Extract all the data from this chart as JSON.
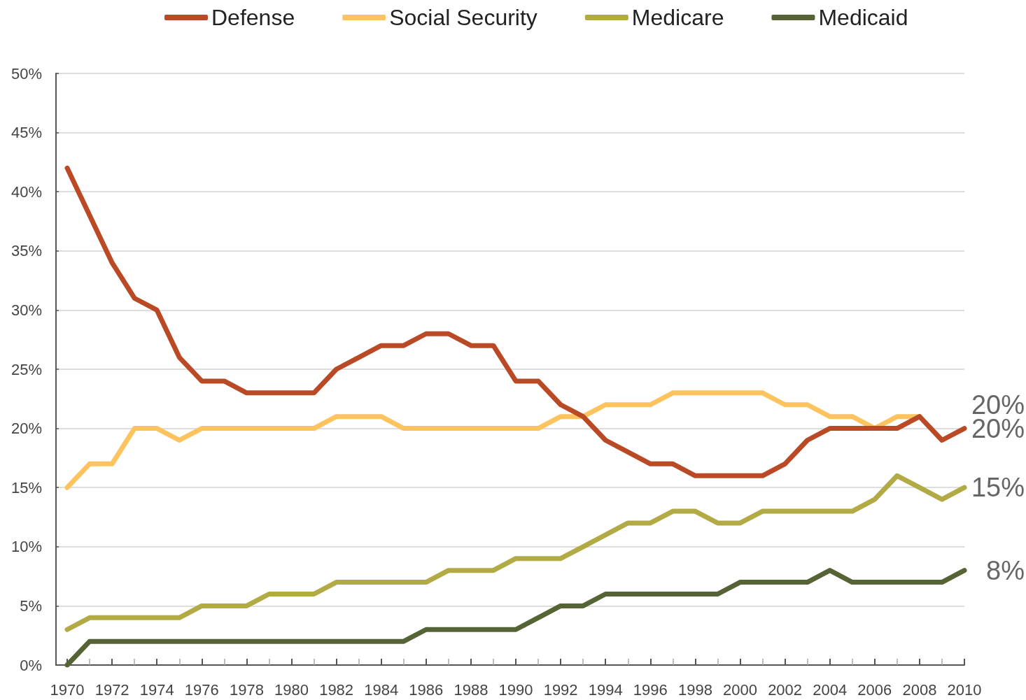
{
  "chart_data": {
    "type": "line",
    "x": [
      1970,
      1971,
      1972,
      1973,
      1974,
      1975,
      1976,
      1977,
      1978,
      1979,
      1980,
      1981,
      1982,
      1983,
      1984,
      1985,
      1986,
      1987,
      1988,
      1989,
      1990,
      1991,
      1992,
      1993,
      1994,
      1995,
      1996,
      1997,
      1998,
      1999,
      2000,
      2001,
      2002,
      2003,
      2004,
      2005,
      2006,
      2007,
      2008,
      2009,
      2010
    ],
    "series": [
      {
        "name": "Defense",
        "color": "#b94a25",
        "values": [
          42,
          38,
          34,
          31,
          30,
          26,
          24,
          24,
          23,
          23,
          23,
          23,
          25,
          26,
          27,
          27,
          28,
          28,
          27,
          27,
          24,
          24,
          22,
          21,
          19,
          18,
          17,
          17,
          16,
          16,
          16,
          16,
          17,
          19,
          20,
          20,
          20,
          20,
          21,
          19,
          20
        ],
        "value_labels": [
          null,
          null,
          null,
          null,
          null,
          null,
          null,
          null,
          null,
          null,
          null,
          null,
          null,
          null,
          null,
          null,
          null,
          null,
          null,
          null,
          null,
          null,
          null,
          null,
          null,
          null,
          null,
          null,
          null,
          null,
          null,
          null,
          null,
          null,
          null,
          null,
          null,
          null,
          null,
          null,
          "20%"
        ]
      },
      {
        "name": "Social Security",
        "color": "#fdc35f",
        "values": [
          15,
          17,
          17,
          20,
          20,
          19,
          20,
          20,
          20,
          20,
          20,
          20,
          21,
          21,
          21,
          20,
          20,
          20,
          20,
          20,
          20,
          20,
          21,
          21,
          22,
          22,
          22,
          23,
          23,
          23,
          23,
          23,
          22,
          22,
          21,
          21,
          20,
          21,
          21,
          null,
          null
        ]
      },
      {
        "name": "Medicare",
        "color": "#b2aa44",
        "values": [
          3,
          4,
          4,
          4,
          4,
          4,
          5,
          5,
          5,
          6,
          6,
          6,
          7,
          7,
          7,
          7,
          7,
          8,
          8,
          8,
          9,
          9,
          9,
          10,
          11,
          12,
          12,
          13,
          13,
          12,
          12,
          13,
          13,
          13,
          13,
          13,
          14,
          16,
          15,
          14,
          15
        ],
        "value_labels": [
          null,
          null,
          null,
          null,
          null,
          null,
          null,
          null,
          null,
          null,
          null,
          null,
          null,
          null,
          null,
          null,
          null,
          null,
          null,
          null,
          null,
          null,
          null,
          null,
          null,
          null,
          null,
          null,
          null,
          null,
          null,
          null,
          null,
          null,
          null,
          null,
          null,
          null,
          null,
          null,
          "15%"
        ]
      },
      {
        "name": "Medicaid",
        "color": "#566334",
        "values": [
          0,
          2,
          2,
          2,
          2,
          2,
          2,
          2,
          2,
          2,
          2,
          2,
          2,
          2,
          2,
          2,
          3,
          3,
          3,
          3,
          3,
          4,
          5,
          5,
          6,
          6,
          6,
          6,
          6,
          6,
          7,
          7,
          7,
          7,
          8,
          7,
          7,
          7,
          7,
          7,
          8
        ],
        "value_labels": [
          null,
          null,
          null,
          null,
          null,
          null,
          null,
          null,
          null,
          null,
          null,
          null,
          null,
          null,
          null,
          null,
          null,
          null,
          null,
          null,
          null,
          null,
          null,
          null,
          null,
          null,
          null,
          null,
          null,
          null,
          null,
          null,
          null,
          null,
          null,
          null,
          null,
          null,
          null,
          null,
          "8%"
        ]
      }
    ],
    "annotations": [
      {
        "text": "20%",
        "x": 2010,
        "y": 20
      }
    ],
    "xlim": [
      1969.5,
      2010
    ],
    "xticks": [
      1970,
      {
        "value": 1971,
        "label": null
      },
      1972,
      {
        "value": 1973,
        "label": null
      },
      1974,
      {
        "value": 1975,
        "label": null
      },
      1976,
      {
        "value": 1977,
        "label": null
      },
      1978,
      {
        "value": 1979,
        "label": null
      },
      1980,
      {
        "value": 1981,
        "label": null
      },
      1982,
      {
        "value": 1983,
        "label": null
      },
      1984,
      {
        "value": 1985,
        "label": null
      },
      1986,
      {
        "value": 1987,
        "label": null
      },
      1988,
      {
        "value": 1989,
        "label": null
      },
      1990,
      {
        "value": 1991,
        "label": null
      },
      1992,
      {
        "value": 1993,
        "label": null
      },
      1994,
      {
        "value": 1995,
        "label": null
      },
      1996,
      {
        "value": 1997,
        "label": null
      },
      1998,
      {
        "value": 1999,
        "label": null
      },
      2000,
      {
        "value": 2001,
        "label": null
      },
      2002,
      {
        "value": 2003,
        "label": null
      },
      2004,
      {
        "value": 2005,
        "label": null
      },
      2006,
      {
        "value": 2007,
        "label": null
      },
      2008,
      {
        "value": 2009,
        "label": null
      },
      2010
    ],
    "ylim": [
      0,
      50
    ],
    "yticks": [
      {
        "value": 0,
        "label": "0%"
      },
      {
        "value": 5,
        "label": "5%"
      },
      {
        "value": 10,
        "label": "10%"
      },
      {
        "value": 15,
        "label": "15%"
      },
      {
        "value": 20,
        "label": "20%"
      },
      {
        "value": 25,
        "label": "25%"
      },
      {
        "value": 30,
        "label": "30%"
      },
      {
        "value": 35,
        "label": "35%"
      },
      {
        "value": 40,
        "label": "40%"
      },
      {
        "value": 45,
        "label": "45%"
      },
      {
        "value": 50,
        "label": "50%"
      }
    ],
    "grid": "y",
    "legend": "top",
    "marker": "none",
    "line_style": "solid"
  }
}
